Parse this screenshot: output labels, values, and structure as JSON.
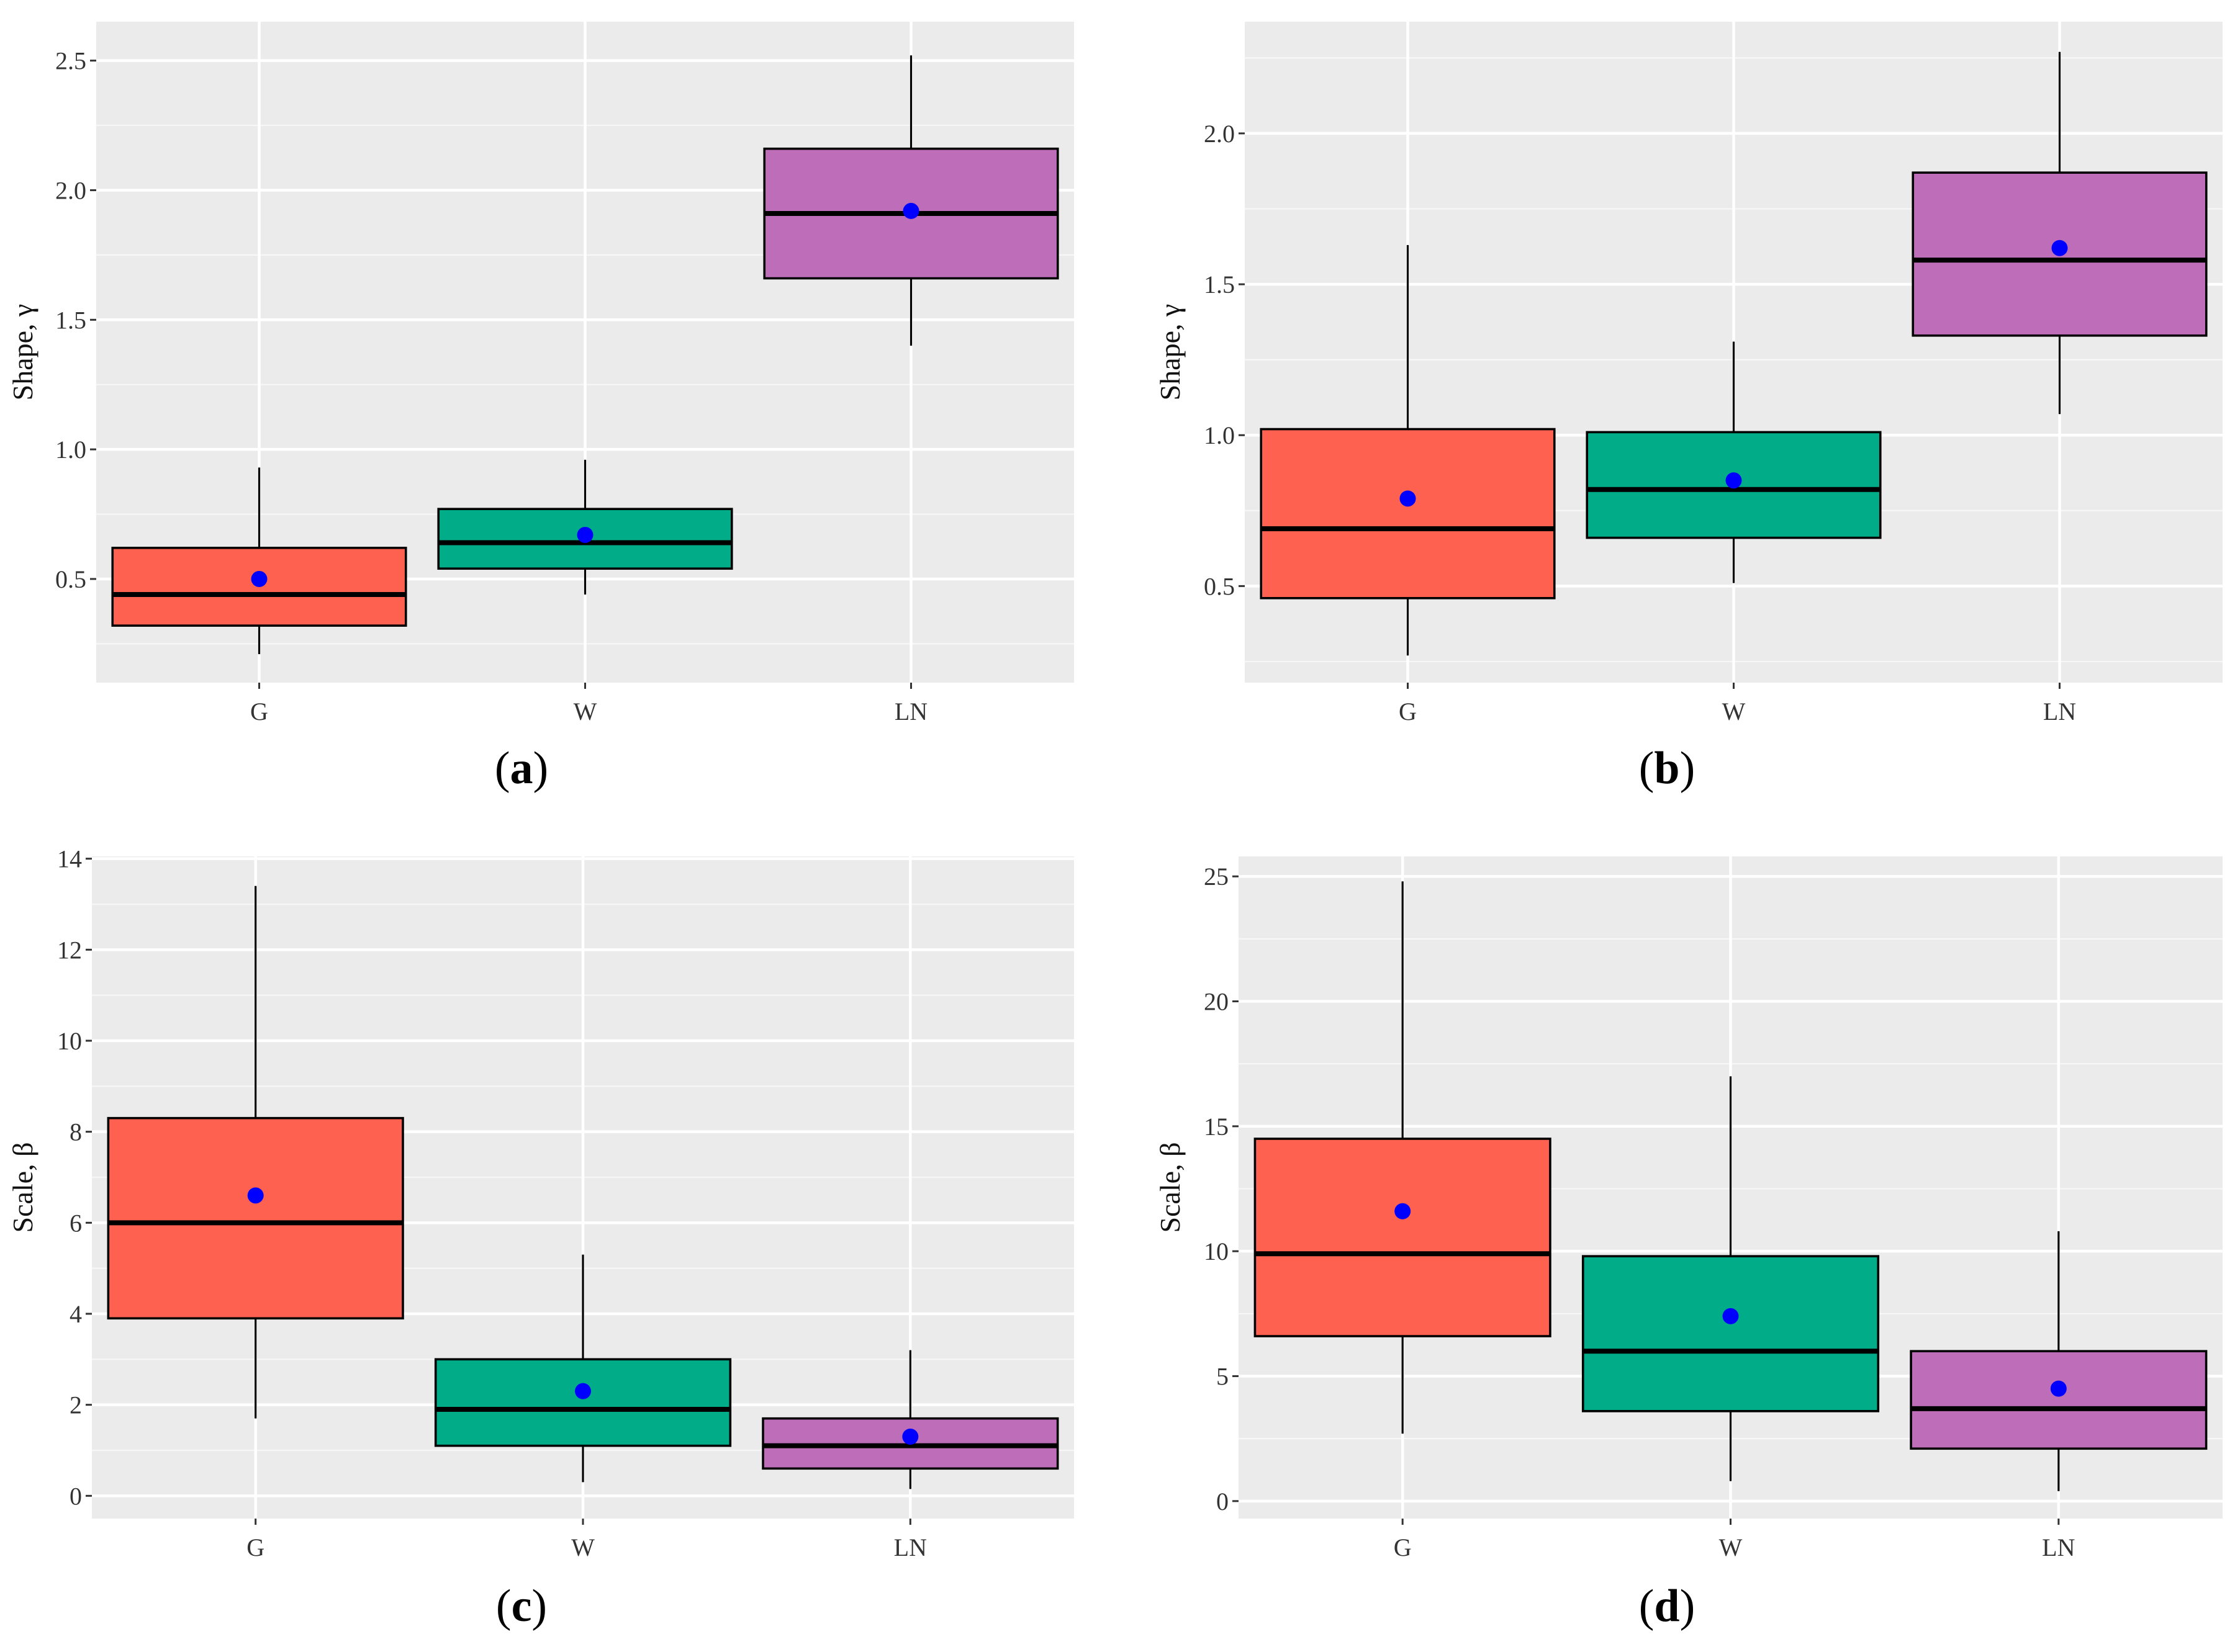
{
  "colors": {
    "G": "#FF6150",
    "W": "#00AD88",
    "LN": "#BE6EB9",
    "mean_point": "#0000FF"
  },
  "chart_data": [
    {
      "id": "a",
      "type": "box",
      "caption": "a",
      "caption_open": "(",
      "caption_close": ")",
      "ylabel": "Shape, γ",
      "xlabel": "",
      "ylim": [
        0.1,
        2.65
      ],
      "yticks": [
        0.5,
        1.0,
        1.5,
        2.0,
        2.5
      ],
      "ytick_labels": [
        "0.5",
        "1.0",
        "1.5",
        "2.0",
        "2.5"
      ],
      "categories": [
        "G",
        "W",
        "LN"
      ],
      "boxes": [
        {
          "category": "G",
          "whisker_low": 0.21,
          "q1": 0.32,
          "median": 0.44,
          "q3": 0.62,
          "whisker_high": 0.93,
          "mean": 0.5
        },
        {
          "category": "W",
          "whisker_low": 0.44,
          "q1": 0.54,
          "median": 0.64,
          "q3": 0.77,
          "whisker_high": 0.96,
          "mean": 0.67
        },
        {
          "category": "LN",
          "whisker_low": 1.4,
          "q1": 1.66,
          "median": 1.91,
          "q3": 2.16,
          "whisker_high": 2.52,
          "mean": 1.92
        }
      ]
    },
    {
      "id": "b",
      "type": "box",
      "caption": "b",
      "caption_open": "(",
      "caption_close": ")",
      "ylabel": "Shape, γ",
      "xlabel": "",
      "ylim": [
        0.18,
        2.37
      ],
      "yticks": [
        0.5,
        1.0,
        1.5,
        2.0
      ],
      "ytick_labels": [
        "0.5",
        "1.0",
        "1.5",
        "2.0"
      ],
      "categories": [
        "G",
        "W",
        "LN"
      ],
      "boxes": [
        {
          "category": "G",
          "whisker_low": 0.27,
          "q1": 0.46,
          "median": 0.69,
          "q3": 1.02,
          "whisker_high": 1.63,
          "mean": 0.79
        },
        {
          "category": "W",
          "whisker_low": 0.51,
          "q1": 0.66,
          "median": 0.82,
          "q3": 1.01,
          "whisker_high": 1.31,
          "mean": 0.85
        },
        {
          "category": "LN",
          "whisker_low": 1.07,
          "q1": 1.33,
          "median": 1.58,
          "q3": 1.87,
          "whisker_high": 2.27,
          "mean": 1.62
        }
      ]
    },
    {
      "id": "c",
      "type": "box",
      "caption": "c",
      "caption_open": "(",
      "caption_close": ")",
      "ylabel": "Scale, β",
      "xlabel": "",
      "ylim": [
        -0.5,
        14.05
      ],
      "yticks": [
        0,
        2,
        4,
        6,
        8,
        10,
        12,
        14
      ],
      "ytick_labels": [
        "0",
        "2",
        "4",
        "6",
        "8",
        "10",
        "12",
        "14"
      ],
      "categories": [
        "G",
        "W",
        "LN"
      ],
      "boxes": [
        {
          "category": "G",
          "whisker_low": 1.7,
          "q1": 3.9,
          "median": 6.0,
          "q3": 8.3,
          "whisker_high": 13.4,
          "mean": 6.6
        },
        {
          "category": "W",
          "whisker_low": 0.3,
          "q1": 1.1,
          "median": 1.9,
          "q3": 3.0,
          "whisker_high": 5.3,
          "mean": 2.3
        },
        {
          "category": "LN",
          "whisker_low": 0.15,
          "q1": 0.6,
          "median": 1.1,
          "q3": 1.7,
          "whisker_high": 3.2,
          "mean": 1.3
        }
      ]
    },
    {
      "id": "d",
      "type": "box",
      "caption": "d",
      "caption_open": "(",
      "caption_close": ")",
      "ylabel": "Scale, β",
      "xlabel": "",
      "ylim": [
        -0.7,
        25.8
      ],
      "yticks": [
        0,
        5,
        10,
        15,
        20,
        25
      ],
      "ytick_labels": [
        "0",
        "5",
        "10",
        "15",
        "20",
        "25"
      ],
      "categories": [
        "G",
        "W",
        "LN"
      ],
      "boxes": [
        {
          "category": "G",
          "whisker_low": 2.7,
          "q1": 6.6,
          "median": 9.9,
          "q3": 14.5,
          "whisker_high": 24.8,
          "mean": 11.6
        },
        {
          "category": "W",
          "whisker_low": 0.8,
          "q1": 3.6,
          "median": 6.0,
          "q3": 9.8,
          "whisker_high": 17.0,
          "mean": 7.4
        },
        {
          "category": "LN",
          "whisker_low": 0.4,
          "q1": 2.1,
          "median": 3.7,
          "q3": 6.0,
          "whisker_high": 10.8,
          "mean": 4.5
        }
      ]
    }
  ]
}
